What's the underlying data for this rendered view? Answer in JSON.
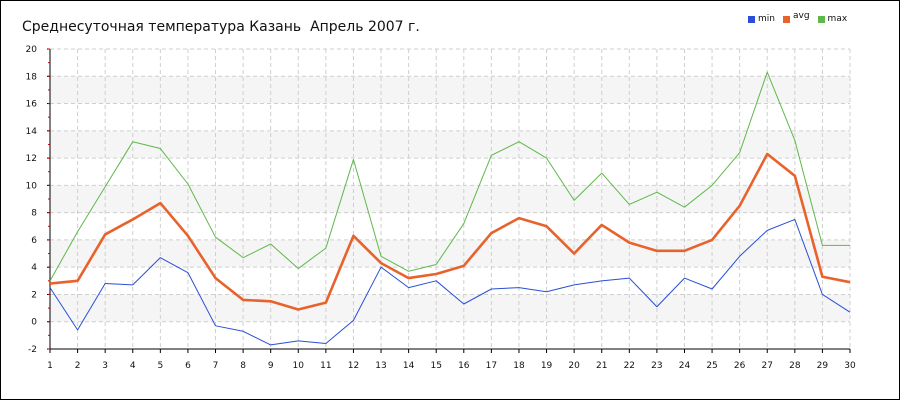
{
  "chart_data": {
    "type": "line",
    "title": "Среднесуточная температура Казань  Апрель 2007 г.",
    "x": [
      1,
      2,
      3,
      4,
      5,
      6,
      7,
      8,
      9,
      10,
      11,
      12,
      13,
      14,
      15,
      16,
      17,
      18,
      19,
      20,
      21,
      22,
      23,
      24,
      25,
      26,
      27,
      28,
      29,
      30
    ],
    "xlim": [
      1,
      30
    ],
    "ylim": [
      -2,
      20
    ],
    "yticks": [
      -2,
      0,
      2,
      4,
      6,
      8,
      10,
      12,
      14,
      16,
      18,
      20
    ],
    "grid": true,
    "legend_position": "top-right",
    "series": [
      {
        "name": "min",
        "color": "#2a4fd6",
        "values": [
          2.5,
          -0.6,
          2.8,
          2.7,
          4.7,
          3.6,
          -0.3,
          -0.7,
          -1.7,
          -1.4,
          -1.6,
          0.1,
          4.0,
          2.5,
          3.0,
          1.3,
          2.4,
          2.5,
          2.2,
          2.7,
          3.0,
          3.2,
          1.1,
          3.2,
          2.4,
          4.8,
          6.7,
          7.5,
          2.0,
          0.7
        ]
      },
      {
        "name": "avg",
        "color": "#e8622c",
        "values": [
          2.8,
          3.0,
          6.4,
          7.5,
          8.7,
          6.3,
          3.2,
          1.6,
          1.5,
          0.9,
          1.4,
          6.3,
          4.3,
          3.2,
          3.5,
          4.1,
          6.5,
          7.6,
          7.0,
          5.0,
          7.1,
          5.8,
          5.2,
          5.2,
          6.0,
          8.5,
          12.3,
          10.7,
          3.3,
          2.9
        ]
      },
      {
        "name": "max",
        "color": "#5fb84a",
        "values": [
          3.0,
          6.6,
          9.9,
          13.2,
          12.7,
          10.1,
          6.2,
          4.7,
          5.7,
          3.9,
          5.4,
          11.9,
          4.8,
          3.7,
          4.2,
          7.2,
          12.2,
          13.2,
          12.0,
          8.9,
          10.9,
          8.6,
          9.5,
          8.4,
          10.0,
          12.4,
          18.3,
          13.3,
          5.6,
          5.6
        ]
      }
    ]
  }
}
